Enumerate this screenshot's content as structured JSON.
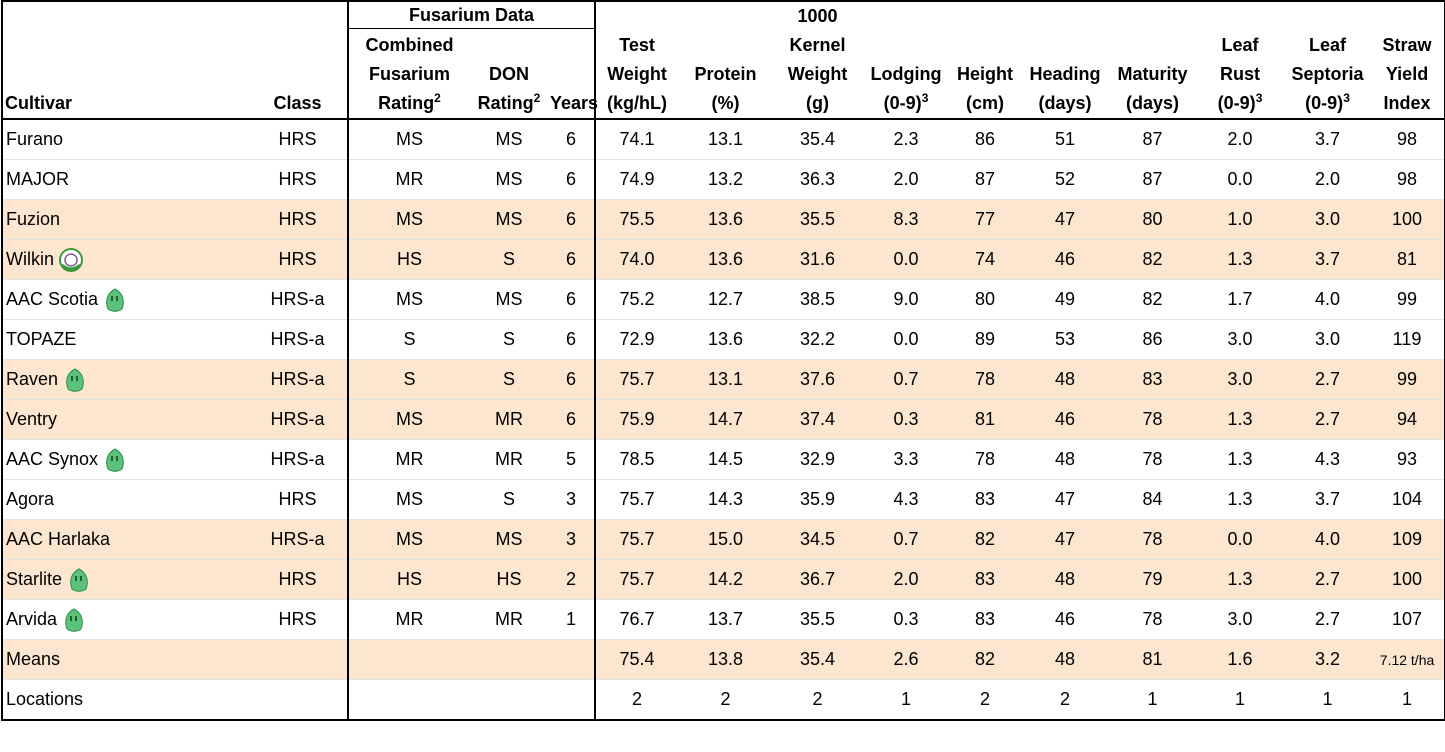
{
  "header": {
    "group": "Fusarium Data",
    "columns": [
      {
        "lines": [
          "Cultivar"
        ]
      },
      {
        "lines": [
          "Class"
        ]
      },
      {
        "lines": [
          "Combined",
          "Fusarium",
          "Rating"
        ],
        "sup": "2"
      },
      {
        "lines": [
          "DON",
          "Rating"
        ],
        "sup": "2"
      },
      {
        "lines": [
          "Years"
        ]
      },
      {
        "lines": [
          "Test",
          "Weight",
          "(kg/hL)"
        ]
      },
      {
        "lines": [
          "Protein",
          "(%)"
        ]
      },
      {
        "lines": [
          "1000",
          "Kernel",
          "Weight",
          "(g)"
        ]
      },
      {
        "lines": [
          "Lodging",
          "(0-9)"
        ],
        "sup": "3"
      },
      {
        "lines": [
          "Height",
          "(cm)"
        ]
      },
      {
        "lines": [
          "Heading",
          "(days)"
        ]
      },
      {
        "lines": [
          "Maturity",
          "(days)"
        ]
      },
      {
        "lines": [
          "Leaf",
          "Rust",
          "(0-9)"
        ],
        "sup": "3"
      },
      {
        "lines": [
          "Leaf",
          "Septoria",
          "(0-9)"
        ],
        "sup": "3"
      },
      {
        "lines": [
          "Straw",
          "Yield",
          "Index"
        ]
      }
    ]
  },
  "table": {
    "rows": [
      {
        "cells": [
          "Furano",
          "HRS",
          "MS",
          "MS",
          "6",
          "74.1",
          "13.1",
          "35.4",
          "2.3",
          "86",
          "51",
          "87",
          "2.0",
          "3.7",
          "98"
        ]
      },
      {
        "cells": [
          "MAJOR",
          "HRS",
          "MR",
          "MS",
          "6",
          "74.9",
          "13.2",
          "36.3",
          "2.0",
          "87",
          "52",
          "87",
          "0.0",
          "2.0",
          "98"
        ]
      },
      {
        "cells": [
          "Fuzion",
          "HRS",
          "MS",
          "MS",
          "6",
          "75.5",
          "13.6",
          "35.5",
          "8.3",
          "77",
          "47",
          "80",
          "1.0",
          "3.0",
          "100"
        ],
        "shaded": true
      },
      {
        "cells": [
          "Wilkin",
          "HRS",
          "HS",
          "S",
          "6",
          "74.0",
          "13.6",
          "31.6",
          "0.0",
          "74",
          "46",
          "82",
          "1.3",
          "3.7",
          "81"
        ],
        "shaded": true,
        "icon": "pbr"
      },
      {
        "cells": [
          "AAC Scotia",
          "HRS-a",
          "MS",
          "MS",
          "6",
          "75.2",
          "12.7",
          "38.5",
          "9.0",
          "80",
          "49",
          "82",
          "1.7",
          "4.0",
          "99"
        ],
        "icon": "leaf"
      },
      {
        "cells": [
          "TOPAZE",
          "HRS-a",
          "S",
          "S",
          "6",
          "72.9",
          "13.6",
          "32.2",
          "0.0",
          "89",
          "53",
          "86",
          "3.0",
          "3.0",
          "119"
        ]
      },
      {
        "cells": [
          "Raven",
          "HRS-a",
          "S",
          "S",
          "6",
          "75.7",
          "13.1",
          "37.6",
          "0.7",
          "78",
          "48",
          "83",
          "3.0",
          "2.7",
          "99"
        ],
        "shaded": true,
        "icon": "leaf"
      },
      {
        "cells": [
          "Ventry",
          "HRS-a",
          "MS",
          "MR",
          "6",
          "75.9",
          "14.7",
          "37.4",
          "0.3",
          "81",
          "46",
          "78",
          "1.3",
          "2.7",
          "94"
        ],
        "shaded": true
      },
      {
        "cells": [
          "AAC Synox",
          "HRS-a",
          "MR",
          "MR",
          "5",
          "78.5",
          "14.5",
          "32.9",
          "3.3",
          "78",
          "48",
          "78",
          "1.3",
          "4.3",
          "93"
        ],
        "icon": "leaf"
      },
      {
        "cells": [
          "Agora",
          "HRS",
          "MS",
          "S",
          "3",
          "75.7",
          "14.3",
          "35.9",
          "4.3",
          "83",
          "47",
          "84",
          "1.3",
          "3.7",
          "104"
        ]
      },
      {
        "cells": [
          "AAC Harlaka",
          "HRS-a",
          "MS",
          "MS",
          "3",
          "75.7",
          "15.0",
          "34.5",
          "0.7",
          "82",
          "47",
          "78",
          "0.0",
          "4.0",
          "109"
        ],
        "shaded": true
      },
      {
        "cells": [
          "Starlite",
          "HRS",
          "HS",
          "HS",
          "2",
          "75.7",
          "14.2",
          "36.7",
          "2.0",
          "83",
          "48",
          "79",
          "1.3",
          "2.7",
          "100"
        ],
        "shaded": true,
        "icon": "leaf"
      },
      {
        "cells": [
          "Arvida",
          "HRS",
          "MR",
          "MR",
          "1",
          "76.7",
          "13.7",
          "35.5",
          "0.3",
          "83",
          "46",
          "78",
          "3.0",
          "2.7",
          "107"
        ],
        "icon": "leaf"
      },
      {
        "cells": [
          "Means",
          null,
          null,
          null,
          null,
          "75.4",
          "13.8",
          "35.4",
          "2.6",
          "82",
          "48",
          "81",
          "1.6",
          "3.2",
          "7.12 t/ha"
        ],
        "shaded": true
      },
      {
        "cells": [
          "Locations",
          null,
          null,
          null,
          null,
          "2",
          "2",
          "2",
          "1",
          "2",
          "2",
          "1",
          "1",
          "1",
          "1"
        ]
      }
    ]
  }
}
